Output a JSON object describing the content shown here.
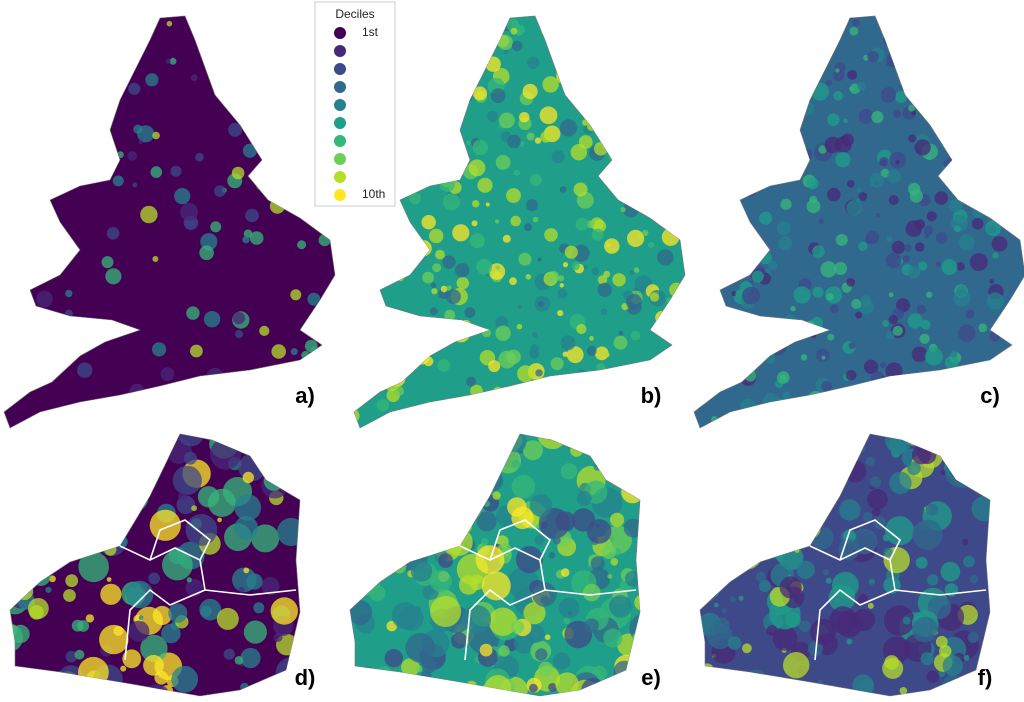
{
  "legend": {
    "title": "Deciles",
    "items": [
      {
        "color": "#440154",
        "label": "1st"
      },
      {
        "color": "#482878"
      },
      {
        "color": "#3e4989"
      },
      {
        "color": "#31688e"
      },
      {
        "color": "#26828e"
      },
      {
        "color": "#1f9e89"
      },
      {
        "color": "#35b779"
      },
      {
        "color": "#6ece58"
      },
      {
        "color": "#b5de2b"
      },
      {
        "color": "#fde725",
        "label": "10th"
      }
    ]
  },
  "panels": [
    {
      "label": "a)"
    },
    {
      "label": "b)"
    },
    {
      "label": "c)"
    },
    {
      "label": "d)"
    },
    {
      "label": "e)"
    },
    {
      "label": "f)"
    }
  ]
}
